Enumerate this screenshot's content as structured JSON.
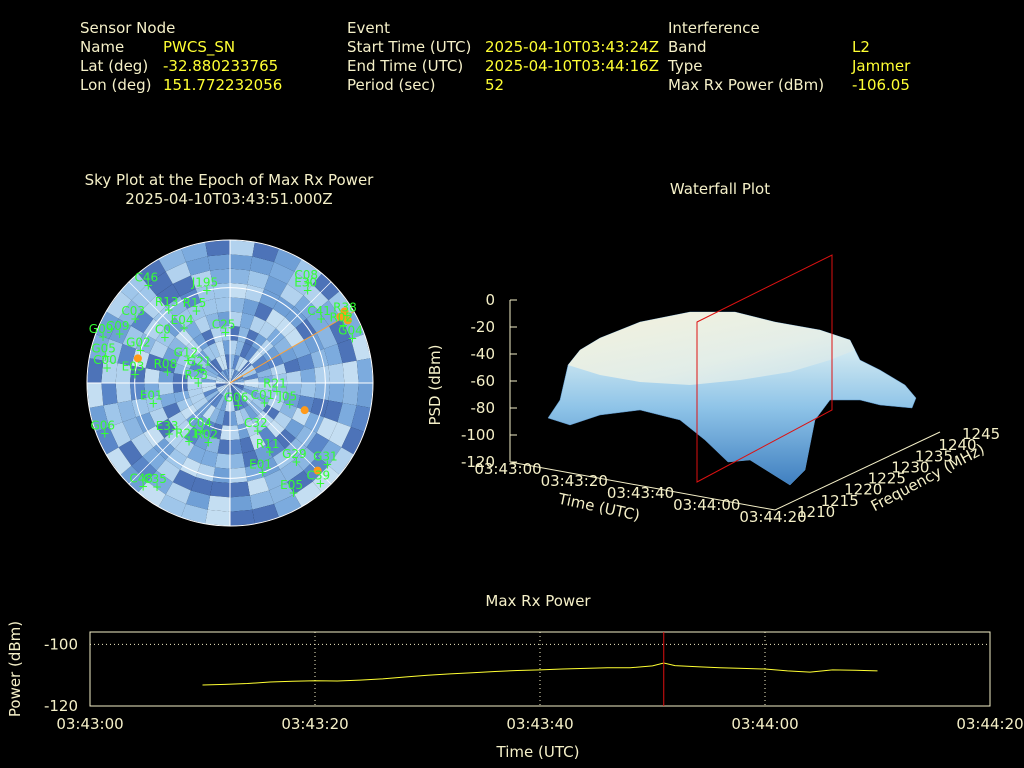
{
  "header": {
    "sensor": {
      "heading": "Sensor Node",
      "rows": [
        {
          "label": "Name",
          "value": "PWCS_SN"
        },
        {
          "label": "Lat (deg)",
          "value": "-32.880233765"
        },
        {
          "label": "Lon (deg)",
          "value": "151.772232056"
        }
      ]
    },
    "event": {
      "heading": "Event",
      "rows": [
        {
          "label": "Start Time (UTC)",
          "value": "2025-04-10T03:43:24Z"
        },
        {
          "label": "End Time (UTC)",
          "value": "2025-04-10T03:44:16Z"
        },
        {
          "label": "Period (sec)",
          "value": "52"
        }
      ]
    },
    "interference": {
      "heading": "Interference",
      "rows": [
        {
          "label": "Band",
          "value": "L2"
        },
        {
          "label": "Type",
          "value": "Jammer"
        },
        {
          "label": "Max Rx Power (dBm)",
          "value": "-106.05"
        }
      ]
    }
  },
  "skyplot": {
    "title": "Sky Plot at the Epoch of Max Rx Power",
    "subtitle": "2025-04-10T03:43:51.000Z",
    "satellites": [
      {
        "id": "J195",
        "az": -14,
        "el": 30
      },
      {
        "id": "C46",
        "az": -40,
        "el": 10
      },
      {
        "id": "R15",
        "az": -25,
        "el": 40
      },
      {
        "id": "C25",
        "az": -5,
        "el": 58
      },
      {
        "id": "E04",
        "az": -40,
        "el": 45
      },
      {
        "id": "R13",
        "az": -40,
        "el": 30
      },
      {
        "id": "C03",
        "az": -56,
        "el": 18
      },
      {
        "id": "G09",
        "az": -70,
        "el": 5
      },
      {
        "id": "C09",
        "az": -66,
        "el": 14
      },
      {
        "id": "C0",
        "az": -55,
        "el": 40
      },
      {
        "id": "G05",
        "az": -78,
        "el": 10
      },
      {
        "id": "G02",
        "az": -70,
        "el": 30
      },
      {
        "id": "G12",
        "az": -62,
        "el": 60
      },
      {
        "id": "C00",
        "az": -83,
        "el": 12
      },
      {
        "id": "E03",
        "az": -85,
        "el": 30
      },
      {
        "id": "R08",
        "az": -80,
        "el": 50
      },
      {
        "id": "G21",
        "az": -65,
        "el": 70
      },
      {
        "id": "R23",
        "az": -90,
        "el": 70
      },
      {
        "id": "E01",
        "az": -105,
        "el": 40
      },
      {
        "id": "C08",
        "az": 38,
        "el": 10
      },
      {
        "id": "E30",
        "az": 40,
        "el": 14
      },
      {
        "id": "C41",
        "az": 55,
        "el": 20
      },
      {
        "id": "R38",
        "az": 60,
        "el": 5
      },
      {
        "id": "R02",
        "az": 63,
        "el": 10
      },
      {
        "id": "G04",
        "az": 70,
        "el": 8
      },
      {
        "id": "R21",
        "az": 100,
        "el": 60
      },
      {
        "id": "J05",
        "az": 110,
        "el": 50
      },
      {
        "id": "C01",
        "az": 120,
        "el": 65
      },
      {
        "id": "G06",
        "az": -112,
        "el": 5
      },
      {
        "id": "E33",
        "az": -130,
        "el": 40
      },
      {
        "id": "R21",
        "az": -145,
        "el": 45
      },
      {
        "id": "C04",
        "az": -150,
        "el": 55
      },
      {
        "id": "R02",
        "az": -160,
        "el": 50
      },
      {
        "id": "G06",
        "az": 160,
        "el": 75
      },
      {
        "id": "C32",
        "az": 150,
        "el": 55
      },
      {
        "id": "R11",
        "az": 150,
        "el": 40
      },
      {
        "id": "E01",
        "az": 160,
        "el": 30
      },
      {
        "id": "G29",
        "az": 140,
        "el": 25
      },
      {
        "id": "G31",
        "az": 130,
        "el": 10
      },
      {
        "id": "C39",
        "az": 138,
        "el": 5
      },
      {
        "id": "E05",
        "az": 150,
        "el": 10
      },
      {
        "id": "C48",
        "az": -140,
        "el": 5
      },
      {
        "id": "C35",
        "az": -145,
        "el": 10
      }
    ],
    "jammer_dots": [
      {
        "az": 58,
        "el": 5
      },
      {
        "az": 60,
        "el": 7
      },
      {
        "az": 62,
        "el": 6
      },
      {
        "az": 59,
        "el": 9
      },
      {
        "az": -75,
        "el": 30
      },
      {
        "az": 110,
        "el": 40
      },
      {
        "az": 135,
        "el": 12
      }
    ],
    "direction_az": 60
  },
  "chart_data": [
    {
      "type": "area",
      "title": "Waterfall Plot",
      "xlabel": "Time (UTC)",
      "ylabel": "Frequency (MHz)",
      "zlabel": "PSD (dBm)",
      "time_ticks": [
        "03:43:00",
        "03:43:20",
        "03:43:40",
        "03:44:00",
        "03:44:20"
      ],
      "freq_ticks": [
        "1210",
        "1215",
        "1220",
        "1225",
        "1230",
        "1235",
        "1240",
        "1245"
      ],
      "psd_ticks": [
        "0",
        "-20",
        "-40",
        "-60",
        "-80",
        "-100",
        "-120"
      ],
      "zlim": [
        -120,
        0
      ],
      "marker_time": "03:43:51"
    },
    {
      "type": "line",
      "title": "Max Rx Power",
      "xlabel": "Time (UTC)",
      "ylabel": "Power (dBm)",
      "x_ticks": [
        "03:43:00",
        "03:43:20",
        "03:43:40",
        "03:44:00",
        "03:44:20"
      ],
      "y_ticks": [
        "-100",
        "-120"
      ],
      "ylim": [
        -120,
        -96
      ],
      "xlim_sec": [
        0,
        80
      ],
      "marker_sec": 51,
      "grid": true,
      "series": [
        {
          "x_sec": [
            10,
            12,
            14,
            16,
            18,
            20,
            22,
            24,
            26,
            28,
            30,
            32,
            34,
            36,
            38,
            40,
            42,
            44,
            46,
            48,
            50,
            51,
            52,
            54,
            56,
            58,
            60,
            62,
            64,
            66,
            68,
            70
          ],
          "y": [
            -113.2,
            -113.0,
            -112.7,
            -112.2,
            -112.0,
            -111.8,
            -111.9,
            -111.6,
            -111.2,
            -110.6,
            -110.0,
            -109.6,
            -109.2,
            -108.8,
            -108.5,
            -108.3,
            -108.0,
            -107.8,
            -107.6,
            -107.6,
            -107.0,
            -106.05,
            -106.9,
            -107.3,
            -107.6,
            -107.8,
            -108.0,
            -108.6,
            -109.0,
            -108.3,
            -108.4,
            -108.6
          ]
        }
      ]
    }
  ]
}
